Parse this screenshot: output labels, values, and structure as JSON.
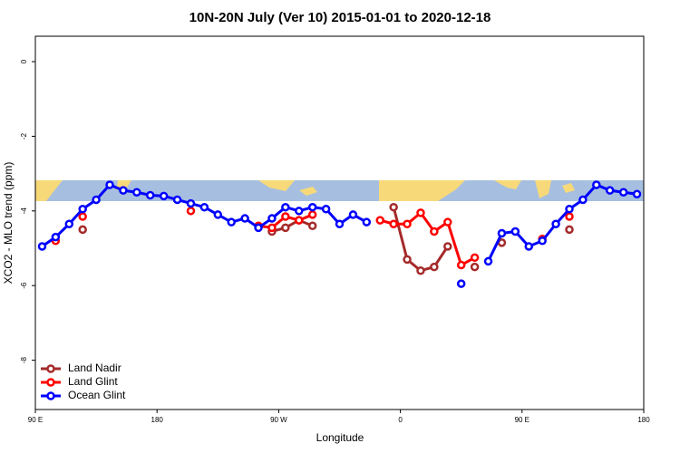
{
  "chart_data": {
    "type": "line",
    "title": "10N-20N July (Ver 10)   2015-01-01 to 2020-12-18",
    "x_label": "Longitude",
    "y_label": "XCO2 - MLO trend (ppm)",
    "x": [
      95,
      105,
      115,
      125,
      135,
      145,
      155,
      165,
      175,
      185,
      195,
      205,
      215,
      225,
      235,
      245,
      255,
      265,
      275,
      285,
      295,
      305,
      315,
      325,
      335,
      345,
      355,
      365,
      375,
      385,
      395,
      405,
      415,
      425,
      435,
      445,
      455,
      465,
      475,
      485,
      495,
      505,
      515,
      525,
      535
    ],
    "series": [
      {
        "name": "Land Nadir",
        "color": "#a52a2a",
        "values": [
          null,
          null,
          null,
          -4.5,
          null,
          null,
          null,
          null,
          null,
          null,
          null,
          null,
          null,
          null,
          null,
          null,
          null,
          -4.55,
          -4.45,
          -4.25,
          -4.4,
          null,
          null,
          null,
          null,
          null,
          -3.9,
          -5.3,
          -5.6,
          -5.5,
          -4.95,
          null,
          -5.5,
          null,
          -4.85,
          null,
          null,
          null,
          null,
          -4.5,
          null,
          null,
          null,
          null,
          null
        ]
      },
      {
        "name": "Land Glint",
        "color": "#ff0000",
        "values": [
          null,
          -4.8,
          null,
          -4.15,
          null,
          null,
          null,
          null,
          null,
          null,
          null,
          -4.0,
          null,
          null,
          null,
          null,
          -4.4,
          -4.45,
          -4.15,
          -4.25,
          -4.1,
          null,
          null,
          null,
          null,
          -4.25,
          -4.35,
          -4.35,
          -4.05,
          -4.55,
          -4.3,
          -5.45,
          -5.25,
          null,
          null,
          null,
          null,
          -4.75,
          null,
          -4.15,
          null,
          null,
          null,
          null,
          null
        ]
      },
      {
        "name": "Ocean Glint",
        "color": "#0000ff",
        "values": [
          -4.95,
          -4.7,
          -4.35,
          -3.95,
          -3.7,
          -3.3,
          -3.45,
          -3.5,
          -3.58,
          -3.6,
          -3.7,
          -3.8,
          -3.9,
          -4.1,
          -4.3,
          -4.2,
          -4.45,
          -4.2,
          -3.9,
          -4.0,
          -3.9,
          -3.95,
          -4.35,
          -4.1,
          -4.3,
          null,
          null,
          null,
          null,
          null,
          null,
          -5.95,
          null,
          -5.35,
          -4.6,
          -4.55,
          -4.95,
          -4.8,
          -4.35,
          -3.95,
          -3.7,
          -3.3,
          -3.45,
          -3.5,
          -3.55
        ]
      }
    ],
    "xlim": [
      90,
      540
    ],
    "xticks": [
      {
        "value": 90,
        "label": "90 E"
      },
      180,
      {
        "value": 270,
        "label": "90 W"
      },
      {
        "value": 360,
        "label": "0"
      },
      {
        "value": 450,
        "label": "90 E"
      },
      {
        "value": 540,
        "label": "180"
      }
    ],
    "ylim": [
      -9.32,
      0.68
    ],
    "yticks": [
      0,
      -2,
      -4,
      -6,
      -8
    ],
    "legend": "bottom-left"
  }
}
